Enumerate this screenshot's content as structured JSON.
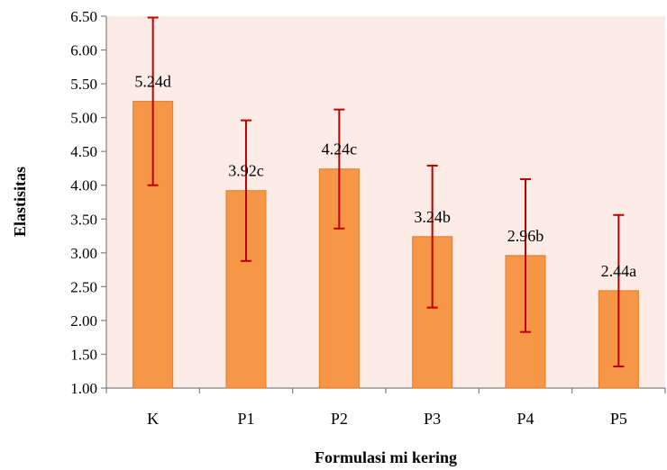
{
  "chart_data": {
    "type": "bar",
    "title": "",
    "xlabel": "Formulasi mi kering",
    "ylabel": "Elastisitas",
    "categories": [
      "K",
      "P1",
      "P2",
      "P3",
      "P4",
      "P5"
    ],
    "values": [
      5.24,
      3.92,
      4.24,
      3.24,
      2.96,
      2.44
    ],
    "data_labels": [
      "5.24d",
      "3.92c",
      "4.24c",
      "3.24b",
      "2.96b",
      "2.44a"
    ],
    "error_low": [
      4.0,
      2.88,
      3.36,
      2.19,
      1.83,
      1.32
    ],
    "error_high": [
      6.48,
      4.96,
      5.12,
      4.29,
      4.09,
      3.56
    ],
    "ylim": [
      1.0,
      6.5
    ],
    "yticks": [
      "1.00",
      "1.50",
      "2.00",
      "2.50",
      "3.00",
      "3.50",
      "4.00",
      "4.50",
      "5.00",
      "5.50",
      "6.00",
      "6.50"
    ],
    "grid": false,
    "legend": "none",
    "colors": {
      "bar": "#F79646",
      "bar_edge": "#E07B2A",
      "error_bar": "#C00000",
      "plot_bg": "#FDEBE6",
      "axis": "#808080"
    }
  }
}
